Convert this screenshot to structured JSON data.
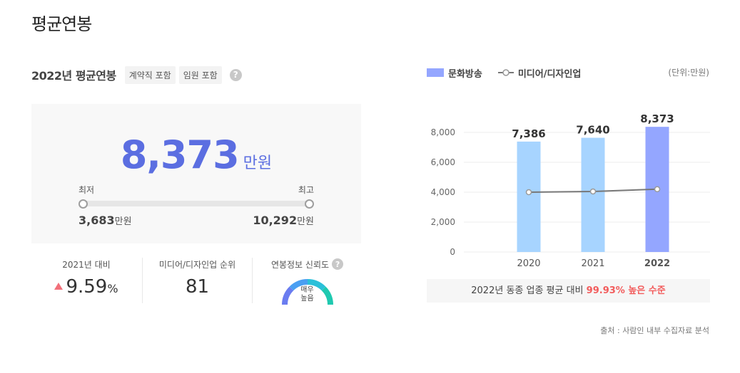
{
  "page_title": "평균연봉",
  "section": {
    "title": "2022년 평균연봉",
    "tags": [
      "계약직 포함",
      "임원 포함"
    ],
    "help_icon": "question-circle-icon"
  },
  "summary": {
    "average": "8,373",
    "unit": "만원",
    "min_label": "최저",
    "max_label": "최고",
    "min_value": "3,683",
    "max_value": "10,292",
    "value_unit": "만원"
  },
  "stats": {
    "change": {
      "label": "2021년 대비",
      "value": "9.59",
      "suffix": "%",
      "direction_icon": "triangle-up-icon",
      "color": "#f2707a"
    },
    "rank": {
      "label": "미디어/디자인업 순위",
      "value": "81"
    },
    "reliability": {
      "label": "연봉정보 신뢰도",
      "value_line1": "매우",
      "value_line2": "높음"
    }
  },
  "legend": {
    "company": "문화방송",
    "industry": "미디어/디자인업",
    "unit": "(단위:만원)"
  },
  "chart_data": {
    "type": "bar",
    "categories": [
      "2020",
      "2021",
      "2022"
    ],
    "series": [
      {
        "name": "문화방송",
        "type": "bar",
        "values": [
          7386,
          7640,
          8373
        ],
        "labels": [
          "7,386",
          "7,640",
          "8,373"
        ],
        "colors": [
          "#a7d4ff",
          "#a7d4ff",
          "#94a6ff"
        ]
      },
      {
        "name": "미디어/디자인업",
        "type": "line",
        "values": [
          4000,
          4050,
          4200
        ],
        "color": "#777777"
      }
    ],
    "yticks": [
      "8,000",
      "6,000",
      "4,000",
      "2,000",
      "0"
    ],
    "ytick_values": [
      8000,
      6000,
      4000,
      2000,
      0
    ],
    "ylim": [
      0,
      8000
    ],
    "grid": true,
    "legend_position": "top-left"
  },
  "comparison": {
    "prefix": "2022년 동종 업종 평균 대비",
    "highlight": "99.93% 높은 수준"
  },
  "source": "출처 : 사람인 내부 수집자료 분석"
}
